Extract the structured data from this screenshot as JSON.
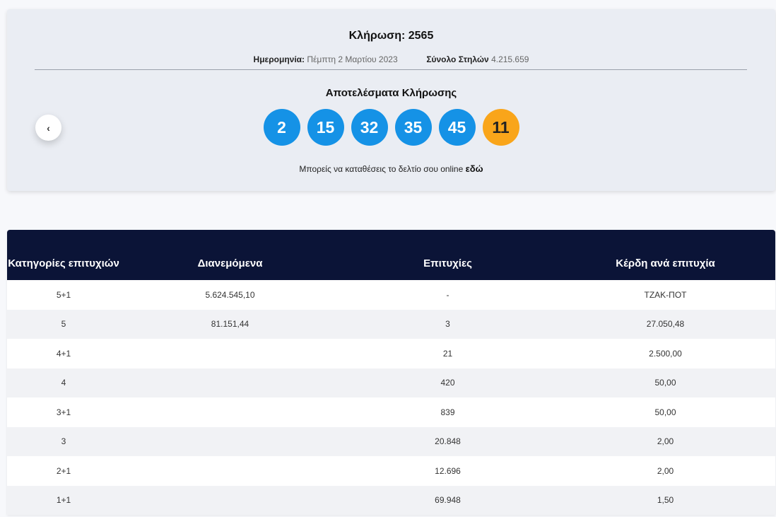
{
  "draw": {
    "title": "Κλήρωση: 2565",
    "date_label": "Ημερομηνία:",
    "date_value": "Πέμπτη 2 Μαρτίου 2023",
    "columns_label": "Σύνολο Στηλών",
    "columns_value": "4.215.659",
    "results_heading": "Αποτελέσματα Κλήρωσης",
    "numbers": [
      "2",
      "15",
      "32",
      "35",
      "45"
    ],
    "bonus_number": "11",
    "prev_arrow": "‹",
    "online_text": "Μπορείς να καταθέσεις το δελτίο σου online",
    "online_link": "εδώ"
  },
  "table": {
    "headers": [
      "Κατηγορίες επιτυχιών",
      "Διανεμόμενα",
      "Επιτυχίες",
      "Κέρδη ανά επιτυχία"
    ],
    "rows": [
      [
        "5+1",
        "5.624.545,10",
        "-",
        "ΤΖΑΚ-ΠΟΤ"
      ],
      [
        "5",
        "81.151,44",
        "3",
        "27.050,48"
      ],
      [
        "4+1",
        "",
        "21",
        "2.500,00"
      ],
      [
        "4",
        "",
        "420",
        "50,00"
      ],
      [
        "3+1",
        "",
        "839",
        "50,00"
      ],
      [
        "3",
        "",
        "20.848",
        "2,00"
      ],
      [
        "2+1",
        "",
        "12.696",
        "2,00"
      ],
      [
        "1+1",
        "",
        "69.948",
        "1,50"
      ]
    ]
  },
  "colors": {
    "ball": "#1592e6",
    "bonus_ball": "#f9a51a",
    "table_header": "#0b1437"
  }
}
